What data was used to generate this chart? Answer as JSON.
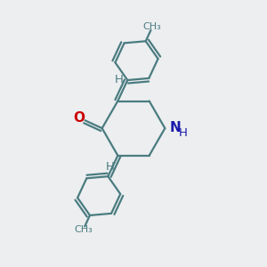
{
  "bg_color": "#eceef0",
  "bond_color": "#4a7c80",
  "bond_width": 1.6,
  "atom_colors": {
    "O": "#cc0000",
    "N": "#1a1aaa",
    "C": "#4a7c80",
    "H": "#4a7c80"
  },
  "font_size_heavy": 11,
  "font_size_H": 9.5,
  "figsize": [
    3.0,
    3.0
  ],
  "dpi": 100
}
